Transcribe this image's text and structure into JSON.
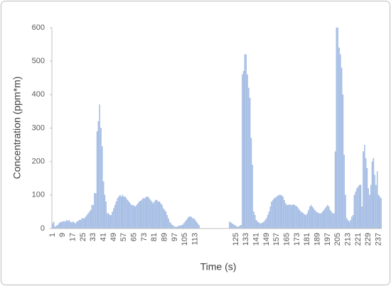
{
  "chart_data": {
    "type": "bar",
    "x_label": "Time (s)",
    "y_label": "Concentration (ppm*m)",
    "color": "#a9c2e6",
    "ylim": [
      0,
      600
    ],
    "yticks": [
      0,
      100,
      200,
      300,
      400,
      500,
      600
    ],
    "categories": [
      1,
      null,
      null,
      null,
      null,
      null,
      null,
      null,
      9,
      null,
      null,
      null,
      null,
      null,
      null,
      null,
      17,
      null,
      null,
      null,
      null,
      null,
      null,
      null,
      25,
      null,
      null,
      null,
      null,
      null,
      null,
      null,
      33,
      null,
      null,
      null,
      null,
      null,
      null,
      null,
      41,
      null,
      null,
      null,
      null,
      null,
      null,
      null,
      49,
      null,
      null,
      null,
      null,
      null,
      null,
      null,
      57,
      null,
      null,
      null,
      null,
      null,
      null,
      null,
      65,
      null,
      null,
      null,
      null,
      null,
      null,
      null,
      73,
      null,
      null,
      null,
      null,
      null,
      null,
      null,
      81,
      null,
      null,
      null,
      null,
      null,
      null,
      null,
      89,
      null,
      null,
      null,
      null,
      null,
      null,
      null,
      97,
      null,
      null,
      null,
      null,
      null,
      null,
      null,
      105,
      null,
      null,
      null,
      null,
      null,
      null,
      null,
      113,
      null,
      null,
      null,
      null,
      null,
      null,
      null,
      null,
      null,
      null,
      null,
      null,
      null,
      null,
      null,
      null,
      null,
      null,
      null,
      null,
      null,
      null,
      null,
      null,
      null,
      null,
      null,
      null,
      null,
      null,
      null,
      125,
      null,
      null,
      null,
      null,
      null,
      null,
      null,
      133,
      null,
      null,
      null,
      null,
      null,
      null,
      null,
      141,
      null,
      null,
      null,
      null,
      null,
      null,
      null,
      149,
      null,
      null,
      null,
      null,
      null,
      null,
      null,
      157,
      null,
      null,
      null,
      null,
      null,
      null,
      null,
      165,
      null,
      null,
      null,
      null,
      null,
      null,
      null,
      173,
      null,
      null,
      null,
      null,
      null,
      null,
      null,
      181,
      null,
      null,
      null,
      null,
      null,
      null,
      null,
      189,
      null,
      null,
      null,
      null,
      null,
      null,
      null,
      197,
      null,
      null,
      null,
      null,
      null,
      null,
      null,
      205,
      null,
      null,
      null,
      null,
      null,
      null,
      null,
      213,
      null,
      null,
      null,
      null,
      null,
      null,
      null,
      221,
      null,
      null,
      null,
      null,
      null,
      null,
      null,
      229,
      null,
      null,
      null,
      null,
      null,
      null,
      null,
      237,
      null,
      null
    ],
    "values": [
      15,
      20,
      5,
      8,
      10,
      15,
      18,
      20,
      20,
      22,
      20,
      25,
      22,
      25,
      20,
      18,
      20,
      18,
      15,
      20,
      22,
      25,
      25,
      30,
      30,
      30,
      35,
      40,
      45,
      50,
      55,
      70,
      70,
      105,
      105,
      290,
      320,
      370,
      300,
      245,
      140,
      100,
      80,
      45,
      45,
      40,
      40,
      50,
      60,
      70,
      80,
      90,
      95,
      100,
      95,
      100,
      95,
      95,
      90,
      85,
      80,
      75,
      70,
      70,
      68,
      65,
      70,
      75,
      80,
      82,
      85,
      90,
      90,
      92,
      95,
      95,
      90,
      85,
      80,
      75,
      80,
      85,
      85,
      80,
      80,
      75,
      70,
      60,
      55,
      50,
      40,
      30,
      20,
      15,
      10,
      8,
      5,
      5,
      5,
      8,
      8,
      10,
      10,
      15,
      20,
      25,
      30,
      35,
      35,
      35,
      30,
      30,
      25,
      20,
      15,
      10,
      null,
      null,
      null,
      null,
      null,
      null,
      null,
      null,
      null,
      null,
      null,
      null,
      null,
      null,
      null,
      null,
      null,
      null,
      null,
      null,
      null,
      null,
      null,
      20,
      18,
      15,
      12,
      10,
      8,
      5,
      5,
      8,
      10,
      460,
      470,
      520,
      520,
      460,
      420,
      390,
      270,
      190,
      50,
      40,
      25,
      20,
      18,
      15,
      15,
      18,
      20,
      25,
      30,
      40,
      50,
      65,
      80,
      85,
      90,
      92,
      95,
      98,
      100,
      100,
      98,
      95,
      85,
      75,
      70,
      70,
      72,
      70,
      70,
      72,
      70,
      68,
      65,
      60,
      55,
      50,
      48,
      45,
      42,
      40,
      45,
      55,
      65,
      70,
      65,
      60,
      55,
      50,
      48,
      45,
      45,
      45,
      50,
      55,
      60,
      65,
      70,
      65,
      55,
      50,
      45,
      45,
      230,
      600,
      600,
      540,
      520,
      480,
      400,
      220,
      100,
      30,
      25,
      20,
      25,
      35,
      40,
      100,
      110,
      120,
      125,
      130,
      130,
      65,
      230,
      250,
      210,
      180,
      120,
      100,
      130,
      200,
      210,
      160,
      130,
      170,
      100,
      95,
      90
    ]
  }
}
